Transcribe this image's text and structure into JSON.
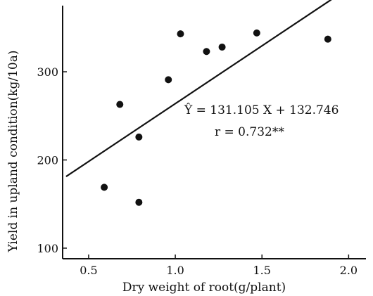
{
  "chart_data": {
    "type": "scatter",
    "xlabel": "Dry weight of root(g/plant)",
    "ylabel": "Yield in upland condition(kg/10a)",
    "xlim": [
      0.35,
      2.1
    ],
    "ylim": [
      88,
      375
    ],
    "x_ticks": [
      0.5,
      1.0,
      1.5,
      2.0
    ],
    "x_tick_labels": [
      "0.5",
      "1.0",
      "1.5",
      "2.0"
    ],
    "y_ticks": [
      100,
      200,
      300
    ],
    "y_tick_labels": [
      "100",
      "200",
      "300"
    ],
    "points": [
      {
        "x": 0.59,
        "y": 169
      },
      {
        "x": 0.68,
        "y": 263
      },
      {
        "x": 0.79,
        "y": 226
      },
      {
        "x": 0.79,
        "y": 152
      },
      {
        "x": 0.96,
        "y": 291
      },
      {
        "x": 1.03,
        "y": 343
      },
      {
        "x": 1.18,
        "y": 323
      },
      {
        "x": 1.27,
        "y": 328
      },
      {
        "x": 1.47,
        "y": 344
      },
      {
        "x": 1.88,
        "y": 337
      }
    ],
    "regression": {
      "slope": 131.105,
      "intercept": 132.746,
      "x_from": 0.37,
      "x_to": 1.9
    },
    "annotations": {
      "equation": "Ŷ = 131.105 X + 132.746",
      "r_value": "r = 0.732**"
    },
    "grid": false,
    "legend": "none"
  }
}
